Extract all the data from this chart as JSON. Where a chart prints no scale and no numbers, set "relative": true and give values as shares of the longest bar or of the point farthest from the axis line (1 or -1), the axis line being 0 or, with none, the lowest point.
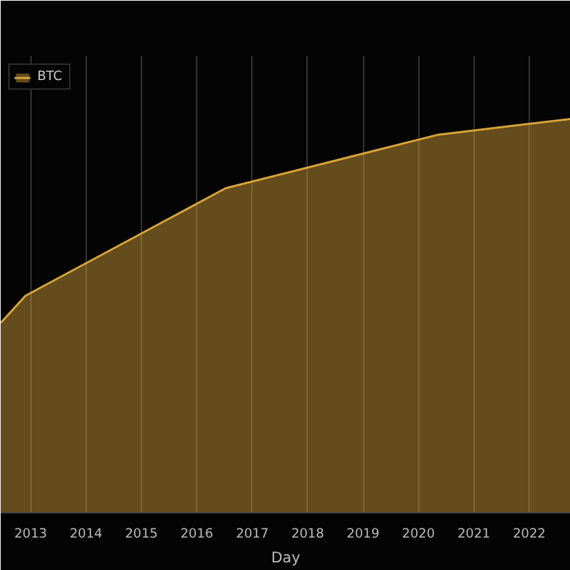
{
  "chart_data": {
    "type": "area",
    "xlabel": "Day",
    "relative": true,
    "x": [
      "2012-06-17",
      "2012-11-28",
      "2016-07-09",
      "2020-05-11",
      "2022-10-01"
    ],
    "series": [
      {
        "name": "BTC",
        "color": "#d9a53a",
        "values": [
          0.482,
          0.551,
          0.824,
          0.96,
          1.0
        ]
      }
    ],
    "xlim": [
      "2012-06-17",
      "2022-10-01"
    ],
    "xticks": [
      "2013",
      "2014",
      "2015",
      "2016",
      "2017",
      "2018",
      "2019",
      "2020",
      "2021",
      "2022"
    ],
    "grid": "x",
    "legend": "top left"
  }
}
